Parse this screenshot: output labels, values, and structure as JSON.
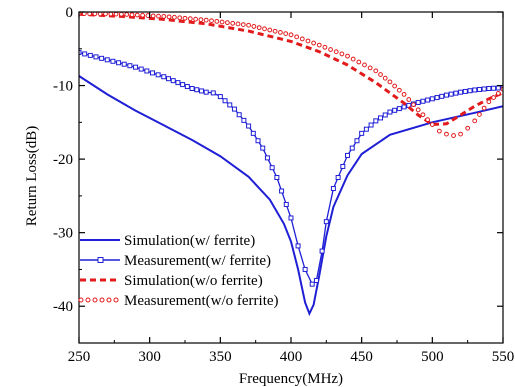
{
  "chart_data": {
    "type": "line",
    "title": "",
    "xlabel": "Frequency(MHz)",
    "ylabel": "Return Loss(dB)",
    "xlim": [
      250,
      550
    ],
    "ylim": [
      -45,
      0
    ],
    "xticks": [
      250,
      300,
      350,
      400,
      450,
      500,
      550
    ],
    "yticks": [
      0,
      -10,
      -20,
      -30,
      -40
    ],
    "xtick_labels": [
      "250",
      "300",
      "350",
      "400",
      "450",
      "500",
      "550"
    ],
    "ytick_labels": [
      "0",
      "-10",
      "-20",
      "-30",
      "-40"
    ],
    "grid": false,
    "legend_position": "bottom-left",
    "series": [
      {
        "name": "Simulation(w/ ferrite)",
        "color": "#1f1fd6",
        "style": "solid-line",
        "x": [
          250,
          270,
          290,
          310,
          330,
          350,
          370,
          385,
          395,
          400,
          405,
          410,
          413,
          416,
          420,
          425,
          430,
          440,
          450,
          470,
          500,
          530,
          550
        ],
        "y": [
          -8.7,
          -11.2,
          -13.4,
          -15.4,
          -17.4,
          -19.6,
          -22.4,
          -25.5,
          -28.8,
          -31.2,
          -35.0,
          -39.5,
          -41.0,
          -39.8,
          -35.8,
          -30.5,
          -26.5,
          -22.2,
          -19.3,
          -16.7,
          -15.0,
          -13.7,
          -12.8
        ]
      },
      {
        "name": "Measurement(w/ ferrite)",
        "color": "#1f1fd6",
        "style": "line-square-markers",
        "x": [
          250,
          270,
          290,
          310,
          320,
          330,
          340,
          345,
          350,
          360,
          370,
          380,
          390,
          400,
          405,
          410,
          415,
          418,
          422,
          425,
          430,
          440,
          450,
          460,
          470,
          480,
          490,
          500,
          510,
          520,
          530,
          540,
          550
        ],
        "y": [
          -5.5,
          -6.5,
          -7.5,
          -8.8,
          -9.6,
          -10.4,
          -10.9,
          -11.0,
          -11.5,
          -13.2,
          -15.5,
          -18.5,
          -22.5,
          -28.0,
          -31.8,
          -35.0,
          -37.0,
          -36.5,
          -32.5,
          -28.5,
          -24.0,
          -19.5,
          -16.5,
          -14.8,
          -13.6,
          -12.9,
          -12.3,
          -11.8,
          -11.3,
          -10.9,
          -10.6,
          -10.4,
          -10.3
        ]
      },
      {
        "name": "Simulation(w/o ferrite)",
        "color": "#e31a1c",
        "style": "dashed-line",
        "x": [
          250,
          280,
          310,
          340,
          370,
          400,
          420,
          440,
          460,
          480,
          490,
          500,
          510,
          520,
          530,
          540,
          550
        ],
        "y": [
          -0.3,
          -0.6,
          -1.0,
          -1.6,
          -2.6,
          -4.0,
          -5.4,
          -7.2,
          -9.6,
          -12.4,
          -14.0,
          -15.3,
          -15.2,
          -14.0,
          -12.8,
          -11.8,
          -11.0
        ]
      },
      {
        "name": "Measurement(w/o ferrite)",
        "color": "#e31a1c",
        "style": "circle-markers",
        "x": [
          250,
          280,
          310,
          340,
          370,
          400,
          420,
          440,
          460,
          470,
          480,
          490,
          500,
          505,
          510,
          515,
          520,
          525,
          530,
          540,
          550
        ],
        "y": [
          -0.2,
          -0.3,
          -0.6,
          -1.1,
          -1.8,
          -3.1,
          -4.5,
          -6.0,
          -8.0,
          -9.5,
          -11.2,
          -13.3,
          -15.3,
          -16.2,
          -16.6,
          -16.8,
          -16.6,
          -15.8,
          -14.8,
          -12.2,
          -10.5
        ]
      }
    ]
  }
}
